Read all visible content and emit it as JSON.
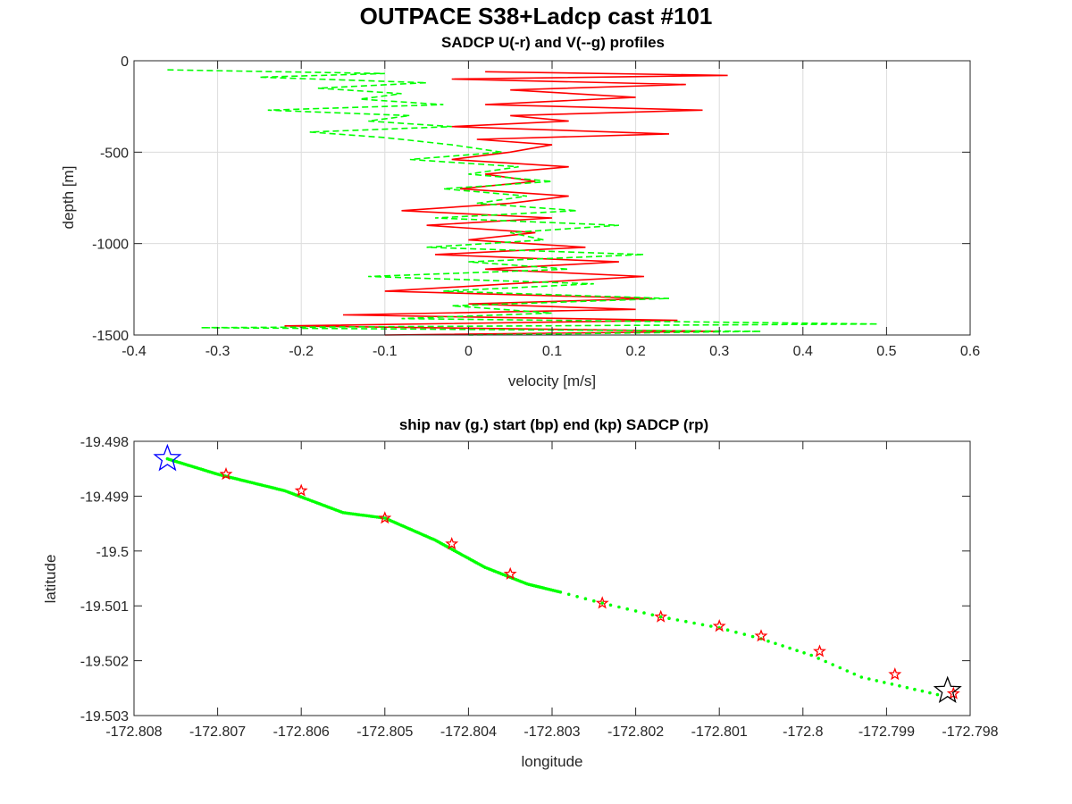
{
  "suptitle": "OUTPACE S38+Ladcp cast #101",
  "chart_data": [
    {
      "type": "line",
      "title": "SADCP U(-r) and V(--g) profiles",
      "xlabel": "velocity [m/s]",
      "ylabel": "depth [m]",
      "xlim": [
        -0.4,
        0.6
      ],
      "ylim": [
        -1500,
        0
      ],
      "xticks": [
        -0.4,
        -0.3,
        -0.2,
        -0.1,
        0,
        0.1,
        0.2,
        0.3,
        0.4,
        0.5,
        0.6
      ],
      "yticks": [
        0,
        -500,
        -1000,
        -1500
      ],
      "xtick_labels": [
        "-0.4",
        "-0.3",
        "-0.2",
        "-0.1",
        "0",
        "0.1",
        "0.2",
        "0.3",
        "0.4",
        "0.5",
        "0.6"
      ],
      "ytick_labels": [
        "0",
        "-500",
        "-1000",
        "-1500"
      ],
      "grid": true,
      "colors": {
        "u": "#ff0000",
        "v": "#00ff00"
      },
      "series": [
        {
          "key": "u",
          "style": "solid",
          "depth": [
            -60,
            -80,
            -100,
            -130,
            -160,
            -200,
            -240,
            -270,
            -300,
            -330,
            -360,
            -400,
            -430,
            -460,
            -500,
            -540,
            -580,
            -620,
            -660,
            -700,
            -740,
            -780,
            -820,
            -860,
            -900,
            -940,
            -980,
            -1020,
            -1060,
            -1100,
            -1140,
            -1180,
            -1220,
            -1260,
            -1300,
            -1330,
            -1360,
            -1390,
            -1420,
            -1450,
            -1480,
            -1500
          ],
          "values": [
            0.02,
            0.31,
            -0.02,
            0.26,
            0.05,
            0.2,
            0.02,
            0.28,
            0.05,
            0.12,
            -0.02,
            0.24,
            0.01,
            0.1,
            0.05,
            -0.02,
            0.12,
            0.02,
            0.08,
            -0.01,
            0.12,
            0.05,
            -0.08,
            0.1,
            -0.05,
            0.08,
            0.0,
            0.14,
            -0.04,
            0.18,
            0.02,
            0.21,
            0.05,
            -0.1,
            0.22,
            0.0,
            0.2,
            -0.15,
            0.25,
            -0.22,
            0.3,
            -0.1
          ]
        },
        {
          "key": "v",
          "style": "dashed",
          "depth": [
            -50,
            -70,
            -90,
            -120,
            -150,
            -180,
            -210,
            -240,
            -270,
            -300,
            -330,
            -360,
            -390,
            -420,
            -460,
            -500,
            -540,
            -580,
            -620,
            -660,
            -700,
            -740,
            -780,
            -820,
            -860,
            -900,
            -940,
            -980,
            -1020,
            -1060,
            -1100,
            -1140,
            -1180,
            -1220,
            -1260,
            -1300,
            -1340,
            -1380,
            -1410,
            -1440,
            -1460,
            -1480,
            -1500
          ],
          "values": [
            -0.36,
            -0.1,
            -0.25,
            -0.05,
            -0.18,
            -0.08,
            -0.13,
            -0.03,
            -0.24,
            -0.07,
            -0.12,
            -0.02,
            -0.19,
            -0.1,
            -0.02,
            0.04,
            -0.07,
            0.06,
            0.0,
            0.1,
            -0.03,
            0.07,
            0.01,
            0.13,
            -0.04,
            0.18,
            0.05,
            0.09,
            -0.05,
            0.21,
            0.0,
            0.12,
            -0.12,
            0.15,
            -0.03,
            0.24,
            -0.02,
            0.1,
            -0.08,
            0.49,
            -0.32,
            0.35,
            0.0
          ]
        }
      ]
    },
    {
      "type": "scatter",
      "title": "ship nav (g.) start (bp) end (kp) SADCP (rp)",
      "xlabel": "longitude",
      "ylabel": "latitude",
      "xlim": [
        -172.808,
        -172.798
      ],
      "ylim": [
        -19.503,
        -19.498
      ],
      "xticks": [
        -172.808,
        -172.807,
        -172.806,
        -172.805,
        -172.804,
        -172.803,
        -172.802,
        -172.801,
        -172.8,
        -172.799,
        -172.798
      ],
      "yticks": [
        -19.498,
        -19.499,
        -19.5,
        -19.501,
        -19.502,
        -19.503
      ],
      "xtick_labels": [
        "-172.808",
        "-172.807",
        "-172.806",
        "-172.805",
        "-172.804",
        "-172.803",
        "-172.802",
        "-172.801",
        "-172.8",
        "-172.799",
        "-172.798"
      ],
      "ytick_labels": [
        "-19.498",
        "-19.499",
        "-19.5",
        "-19.501",
        "-19.502",
        "-19.503"
      ],
      "grid": false,
      "colors": {
        "nav": "#00ff00",
        "sadcp": "#ff0000",
        "start": "#0000ff",
        "end": "#000000"
      },
      "nav_track": {
        "lon": [
          -172.8076,
          -172.807,
          -172.8062,
          -172.8055,
          -172.805,
          -172.8044,
          -172.8038,
          -172.8033,
          -172.8029,
          -172.8024,
          -172.8017,
          -172.801,
          -172.8005,
          -172.7999,
          -172.7993,
          -172.7983
        ],
        "lat": [
          -19.49832,
          -19.4986,
          -19.4989,
          -19.4993,
          -19.4994,
          -19.4998,
          -19.5003,
          -19.5006,
          -19.50075,
          -19.50095,
          -19.5012,
          -19.5014,
          -19.5016,
          -19.5019,
          -19.5023,
          -19.50265
        ]
      },
      "sadcp_points": {
        "lon": [
          -172.8069,
          -172.806,
          -172.805,
          -172.8042,
          -172.8035,
          -172.8024,
          -172.8017,
          -172.801,
          -172.8005,
          -172.7998,
          -172.7989,
          -172.7982
        ],
        "lat": [
          -19.4986,
          -19.4989,
          -19.4994,
          -19.49987,
          -19.50042,
          -19.50095,
          -19.5012,
          -19.50137,
          -19.50155,
          -19.50183,
          -19.50225,
          -19.5026
        ]
      },
      "start": {
        "lon": -172.8076,
        "lat": -19.49832
      },
      "end": {
        "lon": -172.79827,
        "lat": -19.50255
      }
    }
  ]
}
